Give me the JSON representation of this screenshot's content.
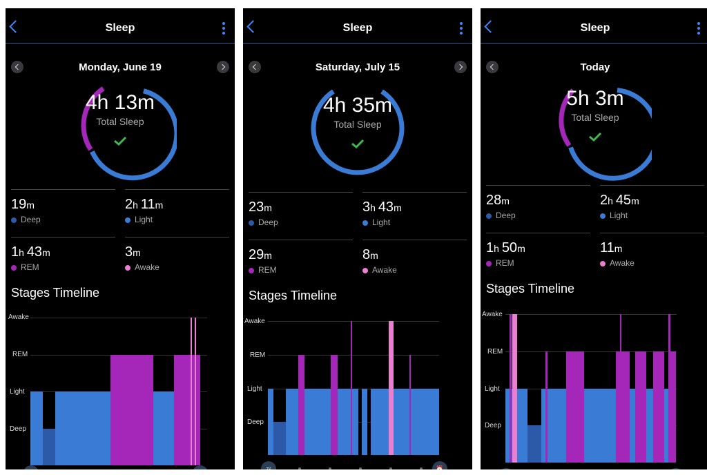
{
  "panels": [
    {
      "header": {
        "title": "Sleep"
      },
      "date": "Monday, June 19",
      "total": "4h 13m",
      "total_label": "Total Sleep",
      "stats": [
        {
          "value": "19",
          "unit": "m",
          "value2": "",
          "unit2": "",
          "label": "Deep"
        },
        {
          "value": "2",
          "unit": "h ",
          "value2": "11",
          "unit2": "m",
          "label": "Light"
        },
        {
          "value": "1",
          "unit": "h ",
          "value2": "43",
          "unit2": "m",
          "label": "REM"
        },
        {
          "value": "3",
          "unit": "m",
          "value2": "",
          "unit2": "",
          "label": "Awake"
        }
      ],
      "timeline_title": "Stages Timeline",
      "levels": [
        "Awake",
        "REM",
        "Light",
        "Deep"
      ]
    },
    {
      "header": {
        "title": "Sleep"
      },
      "date": "Saturday, July 15",
      "total": "4h 35m",
      "total_label": "Total Sleep",
      "stats": [
        {
          "value": "23",
          "unit": "m",
          "value2": "",
          "unit2": "",
          "label": "Deep"
        },
        {
          "value": "3",
          "unit": "h ",
          "value2": "43",
          "unit2": "m",
          "label": "Light"
        },
        {
          "value": "29",
          "unit": "m",
          "value2": "",
          "unit2": "",
          "label": "REM"
        },
        {
          "value": "8",
          "unit": "m",
          "value2": "",
          "unit2": "",
          "label": "Awake"
        }
      ],
      "timeline_title": "Stages Timeline",
      "levels": [
        "Awake",
        "REM",
        "Light",
        "Deep"
      ]
    },
    {
      "header": {
        "title": "Sleep"
      },
      "date": "Today",
      "total": "5h 3m",
      "total_label": "Total Sleep",
      "stats": [
        {
          "value": "28",
          "unit": "m",
          "value2": "",
          "unit2": "",
          "label": "Deep"
        },
        {
          "value": "2",
          "unit": "h ",
          "value2": "45",
          "unit2": "m",
          "label": "Light"
        },
        {
          "value": "1",
          "unit": "h ",
          "value2": "50",
          "unit2": "m",
          "label": "REM"
        },
        {
          "value": "11",
          "unit": "m",
          "value2": "",
          "unit2": "",
          "label": "Awake"
        }
      ],
      "timeline_title": "Stages Timeline",
      "levels": [
        "Awake",
        "REM",
        "Light",
        "Deep"
      ]
    }
  ],
  "colors": {
    "deep": "#2c5aa8",
    "light": "#3a7bd5",
    "rem": "#a427b9",
    "awake": "#ea7fd0",
    "check": "#3fb950",
    "accent": "#3d86ff"
  },
  "icons": {
    "back": "chevron-left-icon",
    "menu": "kebab-menu-icon",
    "start": "zzz-icon",
    "end": "alarm-clock-icon"
  }
}
